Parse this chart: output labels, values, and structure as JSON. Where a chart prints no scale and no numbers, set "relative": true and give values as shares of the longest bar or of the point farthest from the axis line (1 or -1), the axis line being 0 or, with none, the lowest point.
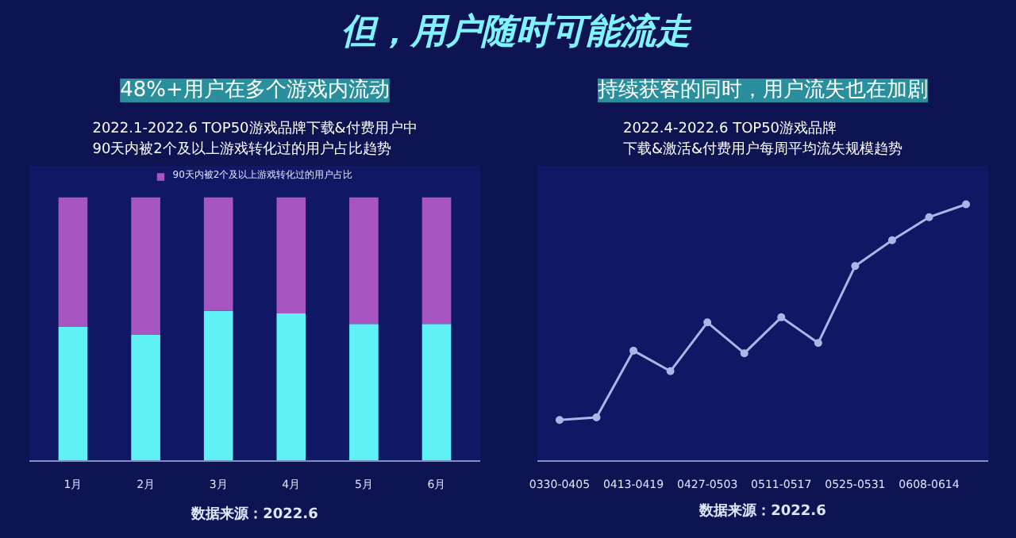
{
  "chart_data": [
    {
      "type": "other",
      "title": "但，用户随时可能流走"
    },
    {
      "type": "bar",
      "title": "48%+用户在多个游戏内流动",
      "subtitle": [
        "2022.1-2022.6 TOP50游戏品牌下载&付费用户中",
        "90天内被2个及以上游戏转化过的用户占比趋势"
      ],
      "categories": [
        "1月",
        "2月",
        "3月",
        "4月",
        "5月",
        "6月"
      ],
      "stacked": true,
      "relative": true,
      "legend": "top",
      "grid": false,
      "series": [
        {
          "color": "#5ef2f7",
          "values": [
            0.51,
            0.48,
            0.57,
            0.56,
            0.52,
            0.52
          ]
        },
        {
          "name": "90天内被2个及以上游戏转化过的用户占比",
          "color": "#a855c4",
          "values": [
            0.49,
            0.52,
            0.43,
            0.44,
            0.48,
            0.48
          ]
        }
      ],
      "annotations": [
        "数据来源：2022.6"
      ]
    },
    {
      "type": "line",
      "title": "持续获客的同时，用户流失也在加剧",
      "subtitle": [
        "2022.4-2022.6 TOP50游戏品牌",
        "下载&激活&付费用户每周平均流失规模趋势"
      ],
      "categories": [
        "0330-0405",
        null,
        "0413-0419",
        null,
        "0427-0503",
        null,
        "0511-0517",
        null,
        "0525-0531",
        null,
        "0608-0614",
        null
      ],
      "relative": true,
      "marker": "circle",
      "grid": false,
      "series": [
        {
          "color": "#a9b6e6",
          "values": [
            0.16,
            0.17,
            0.43,
            0.35,
            0.54,
            0.42,
            0.56,
            0.46,
            0.76,
            0.86,
            0.95,
            1.0
          ]
        }
      ],
      "annotations": [
        "数据来源：2022.6"
      ]
    }
  ]
}
